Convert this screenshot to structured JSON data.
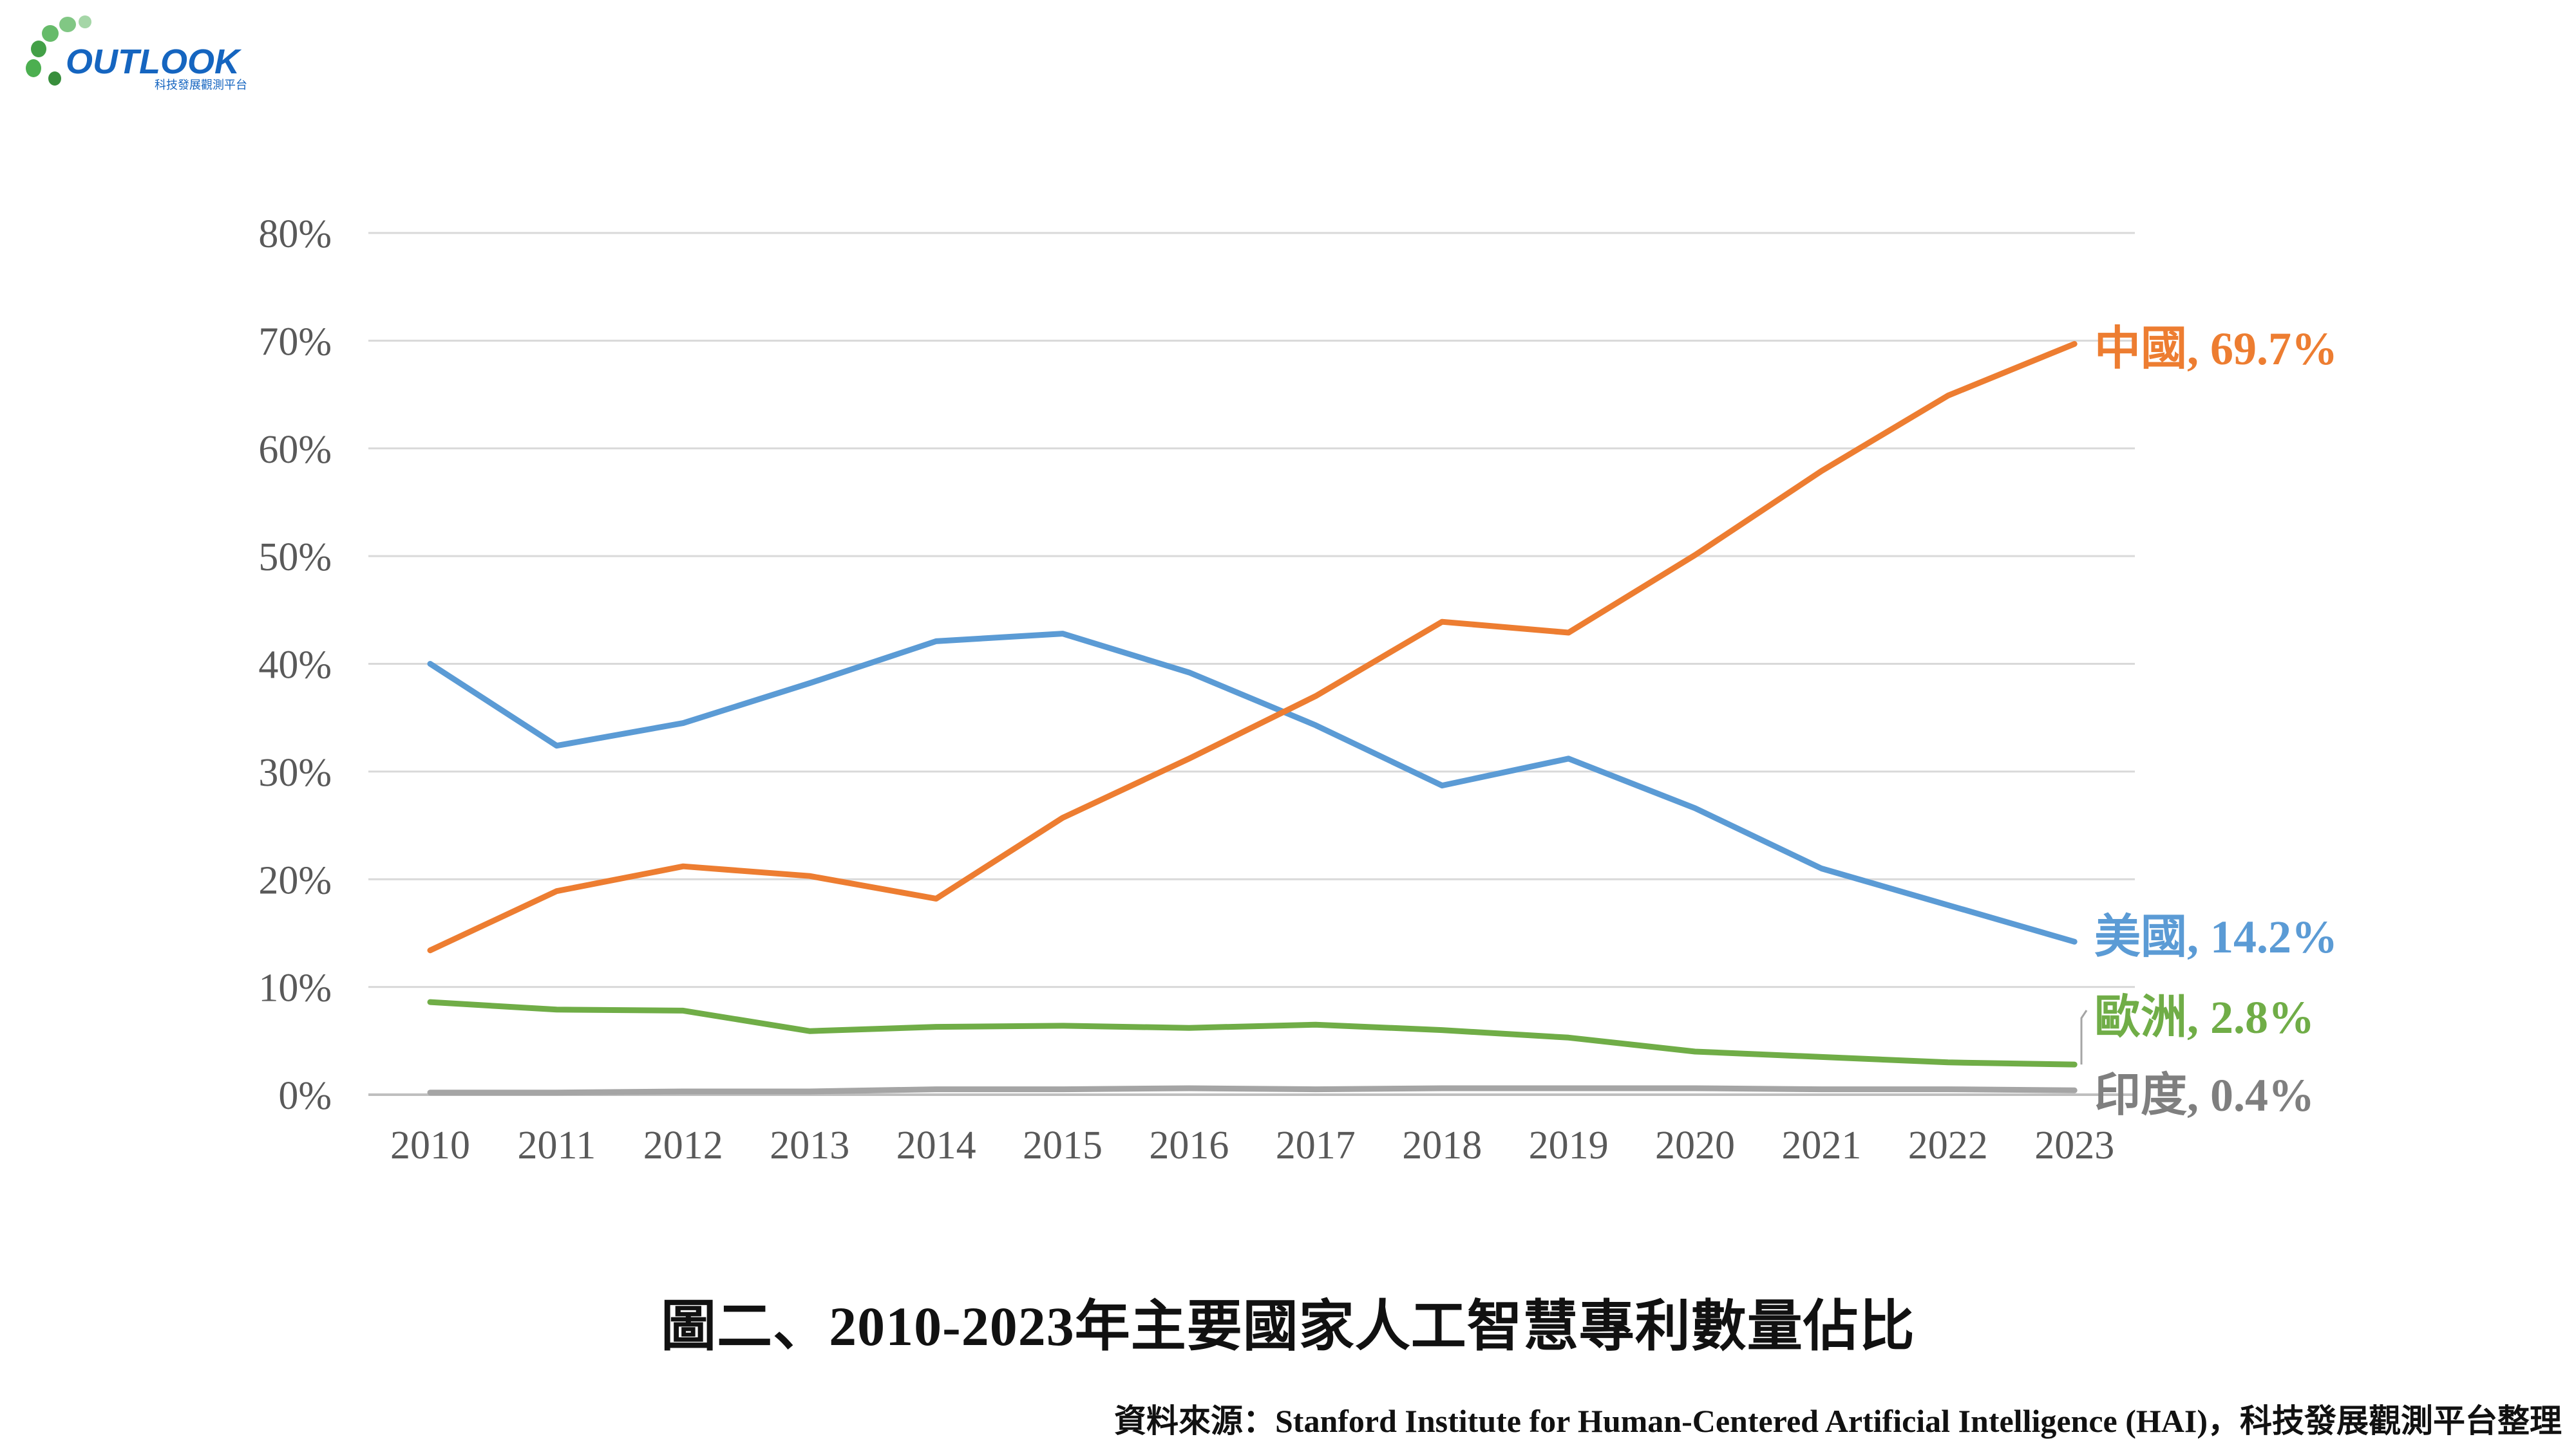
{
  "logo": {
    "text": "OUTLOOK",
    "subtext": "科技發展觀測平台"
  },
  "chart_data": {
    "type": "line",
    "x": [
      2010,
      2011,
      2012,
      2013,
      2014,
      2015,
      2016,
      2017,
      2018,
      2019,
      2020,
      2021,
      2022,
      2023
    ],
    "ylim": [
      0,
      80
    ],
    "y_ticks": [
      "0%",
      "10%",
      "20%",
      "30%",
      "40%",
      "50%",
      "60%",
      "70%",
      "80%"
    ],
    "x_ticks": [
      "2010",
      "2011",
      "2012",
      "2013",
      "2014",
      "2015",
      "2016",
      "2017",
      "2018",
      "2019",
      "2020",
      "2021",
      "2022",
      "2023"
    ],
    "grid": true,
    "series": [
      {
        "name": "中國",
        "color": "#ED7D31",
        "end_label": "中國, 69.7%",
        "values": [
          13.4,
          18.9,
          21.2,
          20.3,
          18.2,
          25.7,
          31.2,
          37.0,
          43.9,
          42.9,
          50.1,
          57.9,
          64.9,
          69.7
        ]
      },
      {
        "name": "美國",
        "color": "#5B9BD5",
        "end_label": "美國, 14.2%",
        "values": [
          40.0,
          32.4,
          34.5,
          38.2,
          42.1,
          42.8,
          39.2,
          34.3,
          28.7,
          31.2,
          26.6,
          21.0,
          17.6,
          14.2
        ]
      },
      {
        "name": "歐洲",
        "color": "#70AD47",
        "end_label": "歐洲, 2.8%",
        "values": [
          8.6,
          7.9,
          7.8,
          5.9,
          6.3,
          6.4,
          6.2,
          6.5,
          6.0,
          5.3,
          4.0,
          3.5,
          3.0,
          2.8
        ]
      },
      {
        "name": "印度",
        "color": "#A5A5A5",
        "end_label": "印度, 0.4%",
        "values": [
          0.2,
          0.2,
          0.3,
          0.3,
          0.5,
          0.5,
          0.6,
          0.5,
          0.6,
          0.6,
          0.6,
          0.5,
          0.5,
          0.4
        ]
      }
    ]
  },
  "caption": "圖二、2010-2023年主要國家人工智慧專利數量佔比",
  "source": "資料來源：Stanford Institute for Human-Centered Artificial Intelligence (HAI)，科技發展觀測平台整理"
}
